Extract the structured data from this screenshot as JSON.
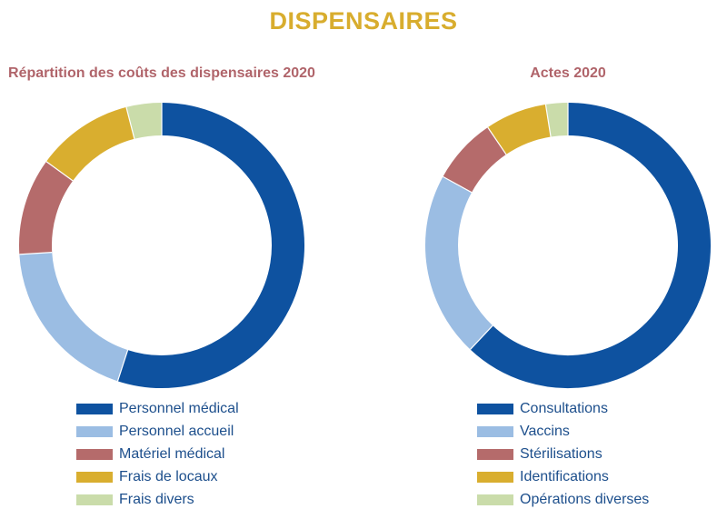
{
  "page": {
    "title": "DISPENSAIRES",
    "title_color": "#d8ad2e",
    "subtitle_color": "#b0646a"
  },
  "chart_data": [
    {
      "type": "pie",
      "title": "Répartition des coûts des dispensaires 2020",
      "legend": "bottom",
      "categories": [
        "Personnel médical",
        "Personnel accueil",
        "Matériel médical",
        "Frais de locaux",
        "Frais divers"
      ],
      "values": [
        55,
        19,
        11,
        11,
        4
      ],
      "colors": [
        "#0e52a0",
        "#9bbde3",
        "#b56b6b",
        "#d9ae2f",
        "#cadcaa"
      ]
    },
    {
      "type": "pie",
      "title": "Actes 2020",
      "legend": "bottom",
      "categories": [
        "Consultations",
        "Vaccins",
        "Stérilisations",
        "Identifications",
        "Opérations diverses"
      ],
      "values": [
        62,
        21,
        7.5,
        7,
        2.5
      ],
      "colors": [
        "#0e52a0",
        "#9bbde3",
        "#b56b6b",
        "#d9ae2f",
        "#cadcaa"
      ]
    }
  ]
}
